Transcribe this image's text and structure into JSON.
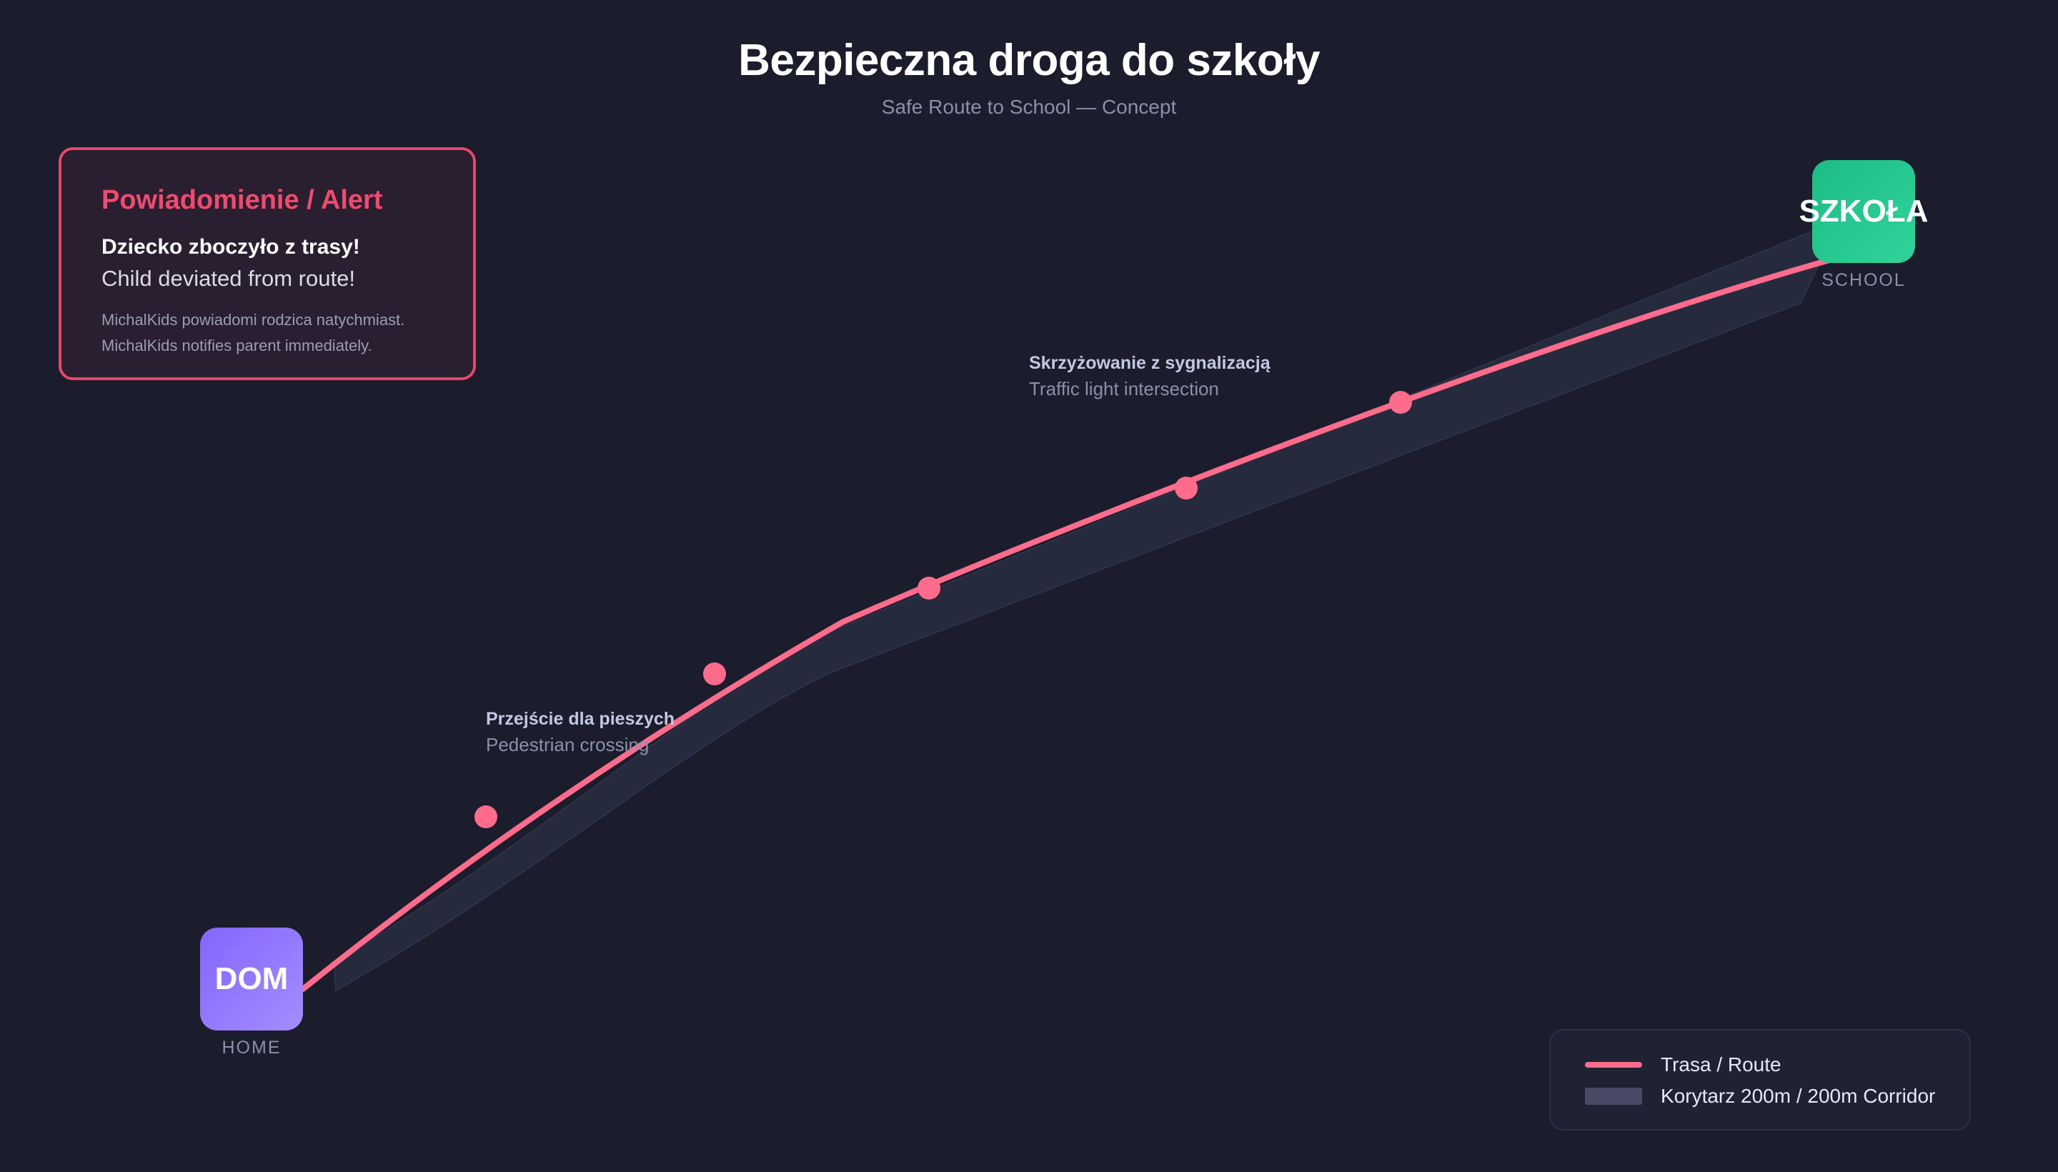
{
  "header": {
    "title": "Bezpieczna droga do szkoły",
    "subtitle": "Safe Route to School — Concept"
  },
  "alert": {
    "title": "Powiadomienie / Alert",
    "message_pl": "Dziecko zboczyło z trasy!",
    "message_en": "Child deviated from route!",
    "note_pl": "MichalKids powiadomi rodzica natychmiast.",
    "note_en": "MichalKids notifies parent immediately."
  },
  "nodes": {
    "home": {
      "label": "DOM",
      "caption": "HOME",
      "color_start": "#8466ff",
      "color_end": "#a48cff"
    },
    "school": {
      "label": "SZKOŁA",
      "caption": "SCHOOL",
      "color_start": "#1bbd85",
      "color_end": "#30d39a"
    }
  },
  "annotations": {
    "crossing": {
      "pl": "Przejście dla pieszych",
      "en": "Pedestrian crossing"
    },
    "lights": {
      "pl": "Skrzyżowanie z sygnalizacją",
      "en": "Traffic light intersection"
    }
  },
  "legend": {
    "route_label": "Trasa / Route",
    "corridor_label": "Korytarz 200m / 200m Corridor"
  },
  "colors": {
    "background": "#1b1d2d",
    "route": "#ff6b8a",
    "corridor": "#262a3d",
    "alert": "#f04a6f"
  },
  "waypoint_count": 5
}
